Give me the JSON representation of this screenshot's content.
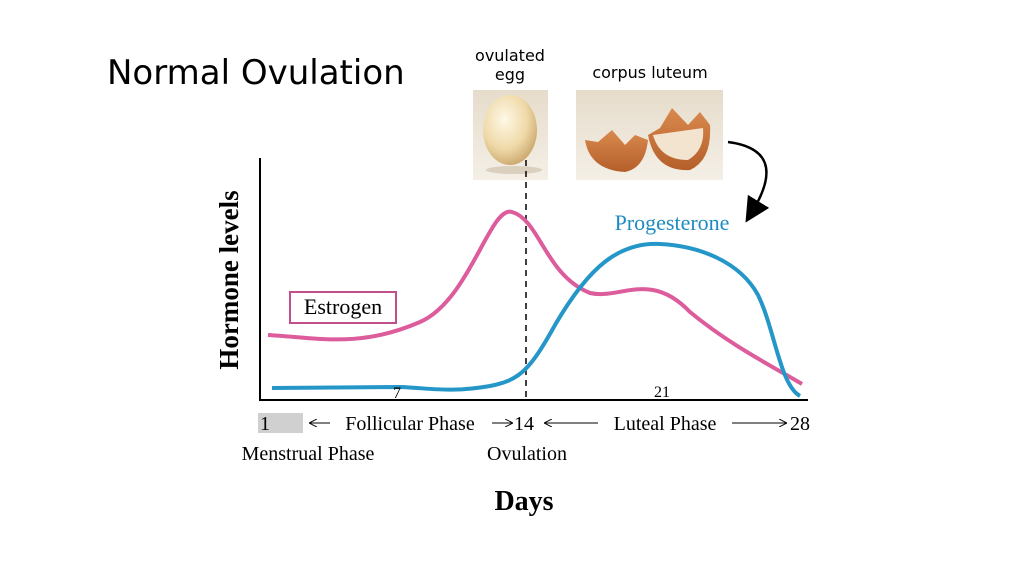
{
  "header": {
    "title": "Normal Ovulation"
  },
  "images": {
    "egg_caption": [
      "ovulated",
      "egg"
    ],
    "luteum_caption": "corpus luteum"
  },
  "curves": {
    "estrogen": "Estrogen",
    "progesterone": "Progesterone"
  },
  "axes": {
    "y_label": "Hormone levels",
    "x_label": "Days"
  },
  "days": {
    "start": "1",
    "d7": "7",
    "d14": "14",
    "d21": "21",
    "end": "28"
  },
  "phases": {
    "follicular": "Follicular Phase",
    "luteal": "Luteal Phase",
    "menstrual": "Menstrual Phase",
    "ovulation": "Ovulation"
  }
}
